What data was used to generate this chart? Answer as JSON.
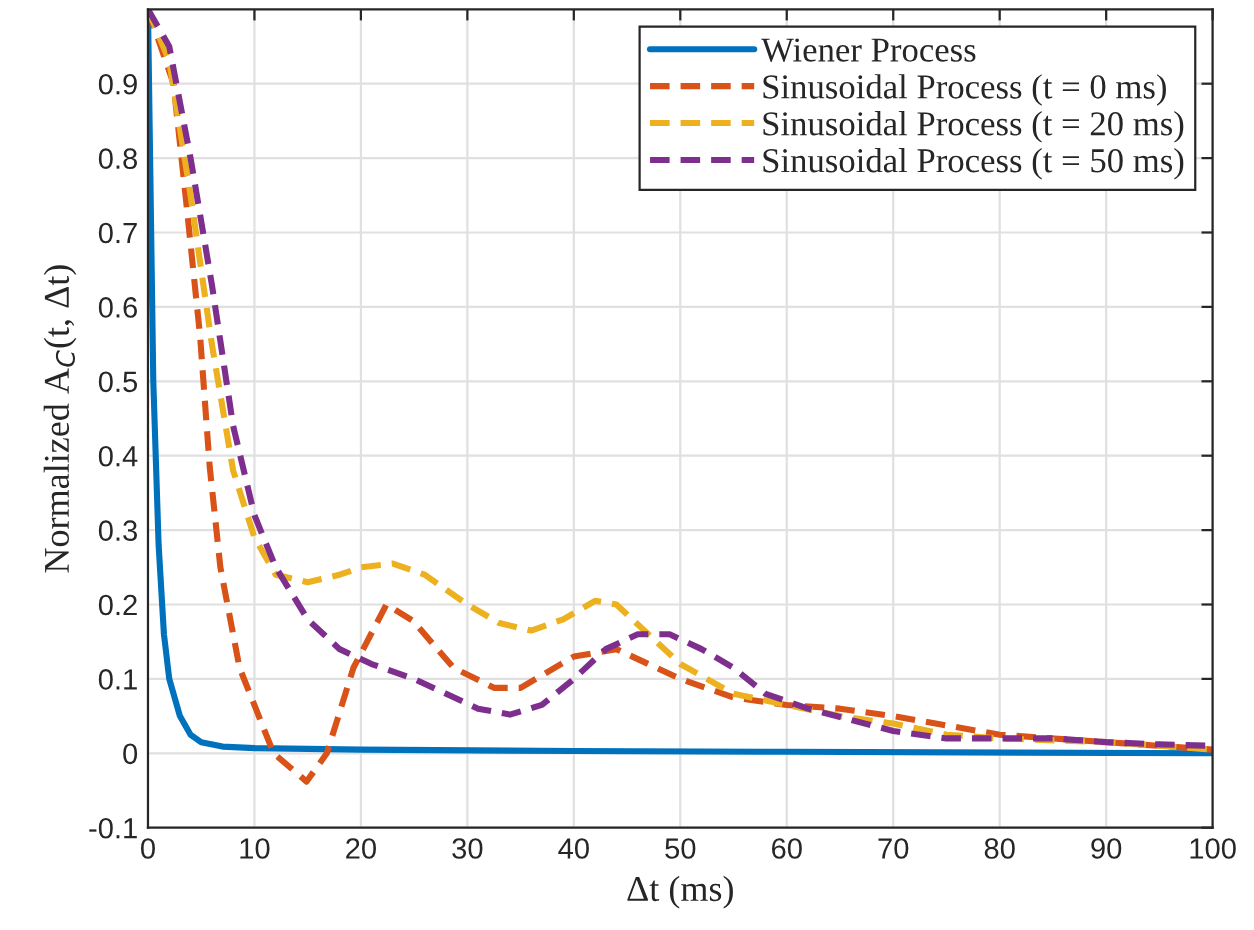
{
  "chart_data": {
    "type": "line",
    "xlabel": "Δt (ms)",
    "ylabel": "Normalized A$_{C}$(t, Δt)",
    "xlim": [
      0,
      100
    ],
    "xticks": [
      0,
      10,
      20,
      30,
      40,
      50,
      60,
      70,
      80,
      90,
      100
    ],
    "ylim": [
      -0.1,
      1
    ],
    "yticks": [
      -0.1,
      0,
      0.1,
      0.2,
      0.3,
      0.4,
      0.5,
      0.6,
      0.7,
      0.8,
      0.9
    ],
    "grid": true,
    "legend": "top right",
    "marker": "none",
    "series": [
      {
        "name": "Wiener Process",
        "color": "#0072bd",
        "line_style": "solid",
        "x": [
          0,
          0.2,
          0.5,
          1,
          1.5,
          2,
          3,
          4,
          5,
          7,
          10,
          20,
          40,
          60,
          100
        ],
        "values": [
          1,
          0.8,
          0.5,
          0.28,
          0.16,
          0.1,
          0.05,
          0.025,
          0.015,
          0.009,
          0.007,
          0.005,
          0.003,
          0.002,
          0
        ]
      },
      {
        "name": "Sinusoidal Process (t = 0 ms)",
        "color": "#d95319",
        "line_style": "dashed",
        "x": [
          0,
          2.4,
          3.6,
          4.9,
          5.8,
          6.8,
          8.6,
          11.8,
          14.9,
          16.8,
          19.3,
          22.4,
          24.9,
          28.7,
          32.5,
          35,
          40,
          44,
          50,
          55,
          60,
          65,
          70,
          80,
          90,
          100
        ],
        "values": [
          1,
          0.9,
          0.74,
          0.56,
          0.385,
          0.25,
          0.115,
          0,
          -0.038,
          0,
          0.115,
          0.2,
          0.178,
          0.115,
          0.088,
          0.088,
          0.13,
          0.14,
          0.1,
          0.075,
          0.065,
          0.06,
          0.05,
          0.025,
          0.015,
          0.005
        ]
      },
      {
        "name": "Sinusoidal Process (t = 20 ms)",
        "color": "#edb120",
        "line_style": "dashed",
        "x": [
          0,
          2,
          4,
          6,
          8,
          10,
          12,
          15,
          18,
          20,
          23,
          26,
          30,
          33,
          36,
          39,
          42,
          44,
          47,
          50,
          55,
          60,
          65,
          70,
          75,
          80,
          90,
          100
        ],
        "values": [
          1,
          0.93,
          0.75,
          0.55,
          0.38,
          0.29,
          0.24,
          0.23,
          0.24,
          0.25,
          0.255,
          0.24,
          0.2,
          0.175,
          0.165,
          0.18,
          0.205,
          0.2,
          0.16,
          0.12,
          0.08,
          0.065,
          0.05,
          0.04,
          0.025,
          0.02,
          0.015,
          0.005
        ]
      },
      {
        "name": "Sinusoidal Process (t = 50 ms)",
        "color": "#7e2f8e",
        "line_style": "dashed",
        "x": [
          0,
          2,
          4,
          6,
          8,
          10,
          12,
          15,
          18,
          21,
          25,
          28,
          31,
          34,
          37,
          40,
          43,
          46,
          49,
          52,
          55,
          58,
          62,
          66,
          70,
          75,
          80,
          85,
          90,
          95,
          100
        ],
        "values": [
          1,
          0.95,
          0.8,
          0.63,
          0.44,
          0.32,
          0.25,
          0.18,
          0.14,
          0.12,
          0.1,
          0.08,
          0.06,
          0.052,
          0.065,
          0.1,
          0.14,
          0.16,
          0.16,
          0.14,
          0.115,
          0.08,
          0.06,
          0.045,
          0.03,
          0.02,
          0.02,
          0.02,
          0.015,
          0.012,
          0.01
        ]
      }
    ]
  }
}
